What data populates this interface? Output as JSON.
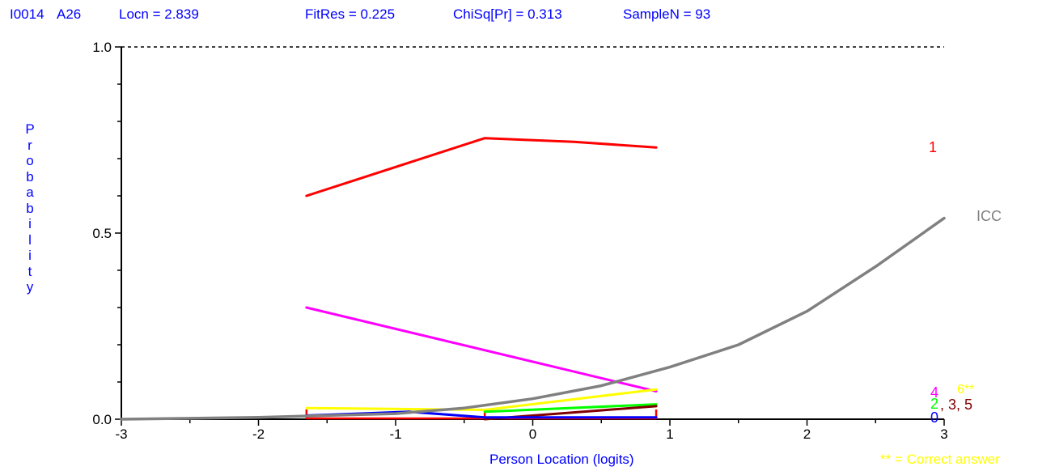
{
  "header": {
    "item_id": "I0014",
    "item_label": "A26",
    "locn": "Locn = 2.839",
    "fitres": "FitRes = 0.225",
    "chisq": "ChiSq[Pr] = 0.313",
    "samplen": "SampleN = 93"
  },
  "note": {
    "text": "** = Correct answer",
    "color": "#ffff00"
  },
  "chart_data": {
    "type": "line",
    "title": "",
    "xlabel": "Person Location (logits)",
    "ylabel": "Probability",
    "xlim": [
      -3,
      3
    ],
    "ylim": [
      0,
      1
    ],
    "x_ticks": [
      "-3",
      "-2",
      "-1",
      "0",
      "1",
      "2",
      "3"
    ],
    "y_ticks": [
      "0.0",
      "0.5",
      "1.0"
    ],
    "reference_line_y": 1.0,
    "grid": false,
    "series": [
      {
        "name": "1",
        "color": "#ff0000",
        "points": [
          [
            -1.65,
            0.6
          ],
          [
            -0.35,
            0.755
          ],
          [
            0.3,
            0.745
          ],
          [
            0.9,
            0.73
          ]
        ]
      },
      {
        "name": "4",
        "color": "#ff00ff",
        "points": [
          [
            -1.65,
            0.3
          ],
          [
            0.9,
            0.075
          ]
        ]
      },
      {
        "name": "6**",
        "color": "#ffff00",
        "points": [
          [
            -1.65,
            0.03
          ],
          [
            -0.35,
            0.025
          ],
          [
            0.9,
            0.08
          ]
        ]
      },
      {
        "name": "2",
        "color": "#00ff00",
        "points": [
          [
            -0.35,
            0.02
          ],
          [
            0.9,
            0.04
          ]
        ]
      },
      {
        "name": "3, 5",
        "color": "#800000",
        "points": [
          [
            -0.35,
            0.0
          ],
          [
            0.9,
            0.035
          ]
        ]
      },
      {
        "name": "0",
        "color": "#0000ff",
        "points": [
          [
            -1.65,
            0.01
          ],
          [
            -0.9,
            0.02
          ],
          [
            -0.35,
            0.005
          ],
          [
            0.9,
            0.005
          ]
        ]
      },
      {
        "name": "ICC",
        "color": "#808080",
        "points": [
          [
            -3.0,
            0.0
          ],
          [
            -2.0,
            0.005
          ],
          [
            -1.0,
            0.015
          ],
          [
            -0.5,
            0.03
          ],
          [
            0.0,
            0.055
          ],
          [
            0.5,
            0.09
          ],
          [
            1.0,
            0.14
          ],
          [
            1.5,
            0.2
          ],
          [
            2.0,
            0.29
          ],
          [
            2.5,
            0.41
          ],
          [
            3.0,
            0.54
          ]
        ]
      }
    ],
    "class_intervals": {
      "color": "#ff0000",
      "x": [
        -1.65,
        -0.35,
        0.9
      ],
      "height": 0.03
    },
    "series_labels": [
      {
        "text": "1",
        "color": "#ff0000"
      },
      {
        "text": "ICC",
        "color": "#808080"
      },
      {
        "text": "4",
        "color": "#ff00ff"
      },
      {
        "text": "6**",
        "color": "#ffff00"
      },
      {
        "text": "2",
        "color": "#00ff00"
      },
      {
        "text": ", 3, 5",
        "color": "#800000"
      },
      {
        "text": "0",
        "color": "#0000ff"
      }
    ]
  }
}
